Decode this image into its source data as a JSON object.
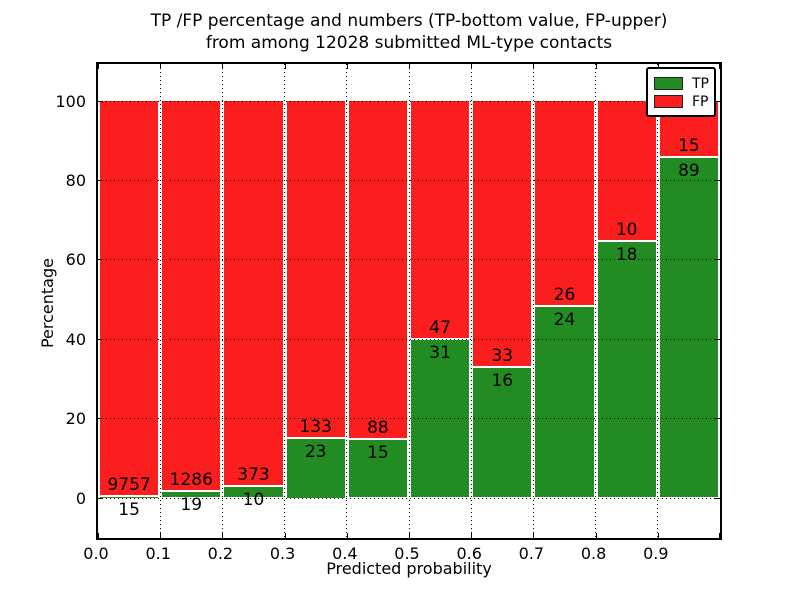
{
  "title": {
    "line1": "TP /FP percentage and numbers (TP-bottom value, FP-upper)",
    "line2": "from among 12028 submitted ML-type contacts"
  },
  "axes": {
    "xlabel": "Predicted probability",
    "ylabel": "Percentage",
    "x_tick_labels": [
      "0.0",
      "0.1",
      "0.2",
      "0.3",
      "0.4",
      "0.5",
      "0.6",
      "0.7",
      "0.8",
      "0.9"
    ],
    "y_tick_labels": [
      "0",
      "20",
      "40",
      "60",
      "80",
      "100"
    ],
    "y_tick_values": [
      0,
      20,
      40,
      60,
      80,
      100
    ]
  },
  "legend": {
    "items": [
      {
        "label": "TP",
        "color": "#228b22"
      },
      {
        "label": "FP",
        "color": "#fa1e1e"
      }
    ]
  },
  "colors": {
    "tp": "#228b22",
    "fp": "#fa1e1e",
    "grid": "#000000",
    "background": "#ffffff"
  },
  "chart_data": {
    "type": "bar",
    "stacked": true,
    "normalized": "each bin stacked to 100%",
    "title": "TP /FP percentage and numbers (TP-bottom value, FP-upper) from among 12028 submitted ML-type contacts",
    "total_contacts": 12028,
    "xlabel": "Predicted probability",
    "ylabel": "Percentage",
    "bin_edges": [
      0.0,
      0.1,
      0.2,
      0.3,
      0.4,
      0.5,
      0.6,
      0.7,
      0.8,
      0.9,
      1.0
    ],
    "categories": [
      "0.0-0.1",
      "0.1-0.2",
      "0.2-0.3",
      "0.3-0.4",
      "0.4-0.5",
      "0.5-0.6",
      "0.6-0.7",
      "0.7-0.8",
      "0.8-0.9",
      "0.9-1.0"
    ],
    "series": [
      {
        "name": "TP",
        "position": "bottom",
        "counts": [
          15,
          19,
          10,
          23,
          15,
          31,
          16,
          24,
          18,
          89
        ]
      },
      {
        "name": "FP",
        "position": "top",
        "counts": [
          9757,
          1286,
          373,
          133,
          88,
          47,
          33,
          26,
          10,
          15
        ]
      }
    ],
    "tp_percent_of_bin": [
      0.2,
      1.5,
      2.6,
      14.7,
      14.6,
      39.7,
      32.7,
      48.0,
      64.3,
      85.6
    ],
    "xlim": [
      0.0,
      1.0
    ],
    "ylim": [
      -10.6,
      109.8
    ],
    "grid": "dotted black, drawn above bars",
    "legend_position": "upper right"
  }
}
